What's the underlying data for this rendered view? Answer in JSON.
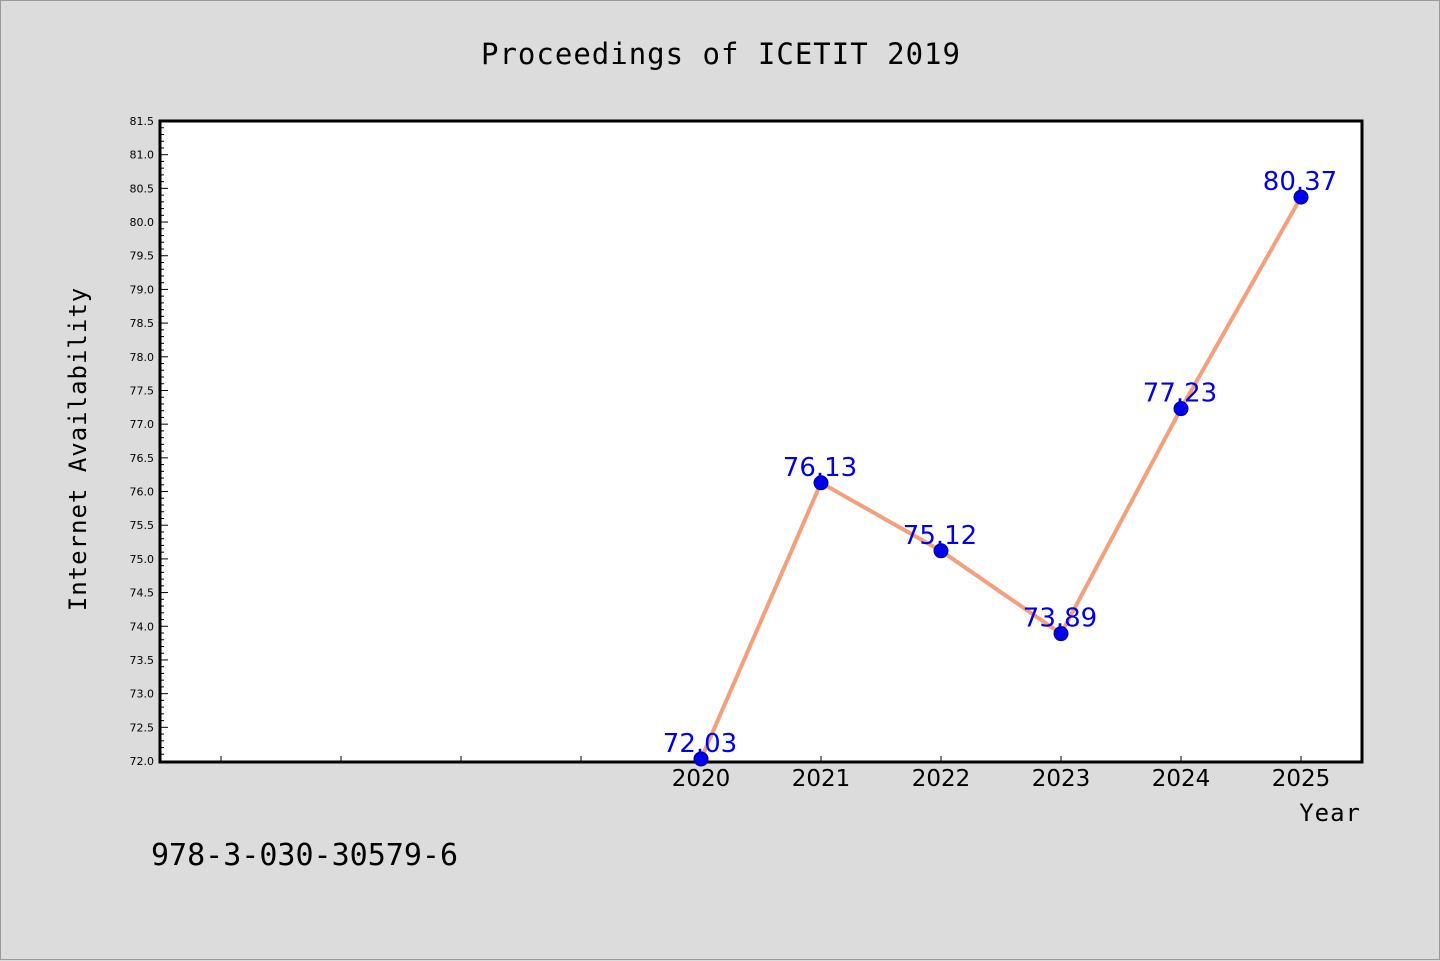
{
  "chart_data": {
    "type": "line",
    "title": "Proceedings of ICETIT 2019",
    "xlabel": "Year",
    "ylabel": "Internet Availability",
    "categories": [
      "2020",
      "2021",
      "2022",
      "2023",
      "2024",
      "2025"
    ],
    "series": [
      {
        "values": [
          72.03,
          76.13,
          75.12,
          73.89,
          77.23,
          80.37
        ]
      }
    ],
    "data_labels": [
      "72.03",
      "76.13",
      "75.12",
      "73.89",
      "77.23",
      "80.37"
    ],
    "ylim": [
      72.0,
      81.5
    ],
    "yticks": [
      "72.0",
      "72.5",
      "73.0",
      "73.5",
      "74.0",
      "74.5",
      "75.0",
      "75.5",
      "76.0",
      "76.5",
      "77.0",
      "77.5",
      "78.0",
      "78.5",
      "79.0",
      "79.5",
      "80.0",
      "80.5",
      "81.0",
      "81.5"
    ],
    "grid": false,
    "legend": "none",
    "colors": {
      "line": "#f4a07c",
      "marker": "#0000ee",
      "data_label": "#0000ee",
      "background": "#dcdcdc",
      "plot_area": "#ffffff"
    }
  },
  "footer": {
    "isbn": "978-3-030-30579-6"
  }
}
